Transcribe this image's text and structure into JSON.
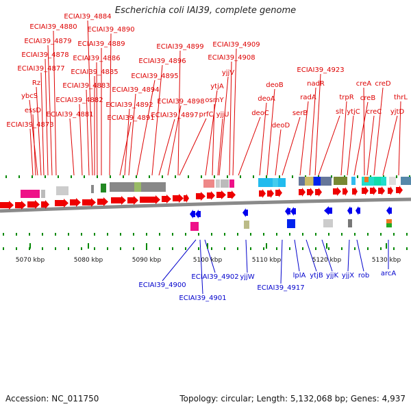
{
  "title": "Escherichia coli IAI39, complete genome",
  "footer": {
    "accession": "Accession: NC_011750",
    "summary": "Topology: circular; Length: 5,132,068 bp; Genes: 4,937"
  },
  "colors": {
    "forward_label": "#dd0000",
    "reverse_label": "#0000cc",
    "forward_arrow": "#ee0000",
    "reverse_arrow": "#0000ee",
    "tick": "#008800"
  },
  "scale": {
    "ticks": [
      {
        "label": "5070 kbp"
      },
      {
        "label": "5080 kbp"
      },
      {
        "label": "5090 kbp"
      },
      {
        "label": "5100 kbp"
      },
      {
        "label": "5110 kbp"
      },
      {
        "label": "5120 kbp"
      },
      {
        "label": "5130 kbp"
      }
    ]
  },
  "forward_genes": [
    "ECIAI39_4873",
    "essD",
    "ybcS",
    "Rz",
    "ECIAI39_4877",
    "ECIAI39_4878",
    "ECIAI39_4879",
    "ECIAI39_4880",
    "ECIAI39_4881",
    "ECIAI39_4882",
    "ECIAI39_4883",
    "ECIAI39_4884",
    "ECIAI39_4885",
    "ECIAI39_4886",
    "ECIAI39_4889",
    "ECIAI39_4890",
    "ECIAI39_4891",
    "ECIAI39_4892",
    "ECIAI39_4894",
    "ECIAI39_4895",
    "ECIAI39_4896",
    "ECIAI39_4897",
    "ECIAI39_4898",
    "ECIAI39_4899",
    "prfC",
    "ytjA",
    "osmY",
    "yjjU",
    "yjjV",
    "ECIAI39_4908",
    "ECIAI39_4909",
    "deoC",
    "deoA",
    "deoB",
    "deoD",
    "serB",
    "radA",
    "nadR",
    "ECIAI39_4923",
    "slt",
    "trpR",
    "ytjC",
    "creB",
    "creA",
    "creC",
    "creD",
    "yjtD",
    "thrL"
  ],
  "reverse_genes": [
    "ECIAI39_4900",
    "ECIAI39_4901",
    "ECIAI39_4902",
    "yjjW",
    "ECIAI39_4917",
    "lplA",
    "ytjB",
    "yjjK",
    "yjjX",
    "rob",
    "arcA"
  ]
}
